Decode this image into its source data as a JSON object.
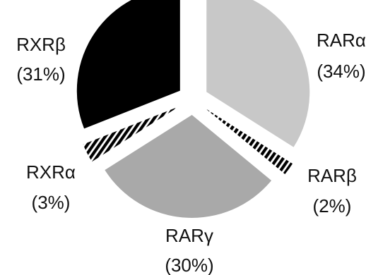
{
  "chart_data": {
    "type": "pie",
    "title": "",
    "slices": [
      {
        "name": "RARα",
        "pct_label": "(34%)",
        "value": 34,
        "fill": "#c8c8c8",
        "pattern": "solid"
      },
      {
        "name": "RARβ",
        "pct_label": "(2%)",
        "value": 2,
        "fill": "#000000",
        "pattern": "stripes-dark"
      },
      {
        "name": "RARγ",
        "pct_label": "(30%)",
        "value": 30,
        "fill": "#a9a9a9",
        "pattern": "solid"
      },
      {
        "name": "RXRα",
        "pct_label": "(3%)",
        "value": 3,
        "fill": "#000000",
        "pattern": "stripes-dark"
      },
      {
        "name": "RXRβ",
        "pct_label": "(31%)",
        "value": 31,
        "fill": "#000000",
        "pattern": "solid"
      }
    ],
    "exploded": true,
    "start": "top, clockwise"
  }
}
